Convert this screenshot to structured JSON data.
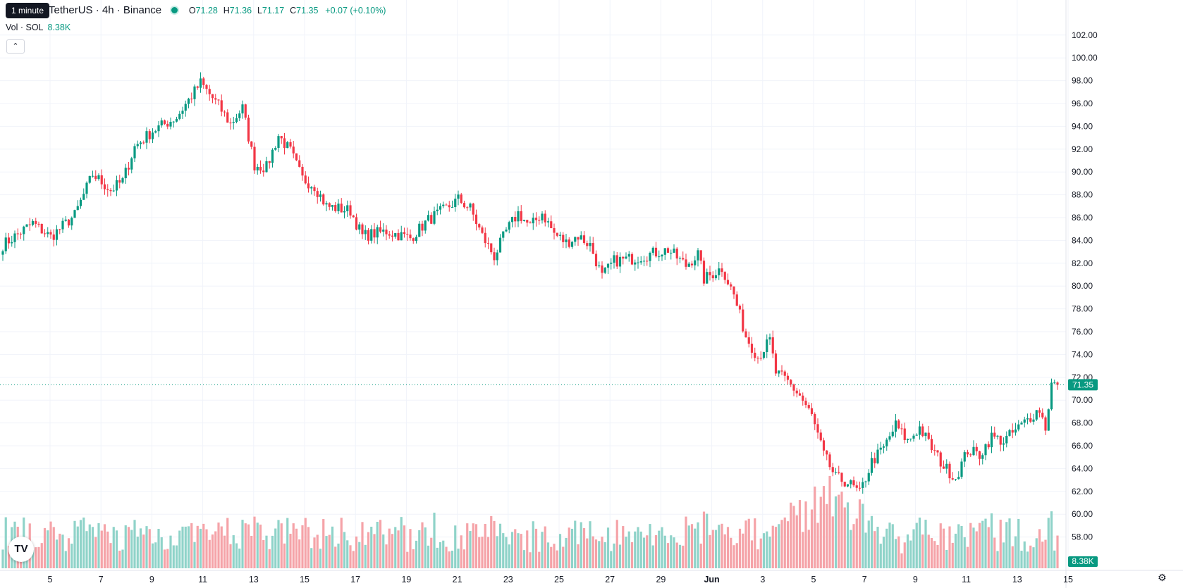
{
  "tooltip": "1 minute",
  "legend": {
    "symbol": "TetherUS · 4h · Binance",
    "open_label": "O",
    "open": "71.28",
    "high_label": "H",
    "high": "71.36",
    "low_label": "L",
    "low": "71.17",
    "close_label": "C",
    "close": "71.35",
    "change": "+0.07 (+0.10%)"
  },
  "volume_legend": {
    "label": "Vol · SOL",
    "value": "8.38K"
  },
  "colors": {
    "up": "#089981",
    "down": "#f23645",
    "vol_up": "#8fd3c9",
    "vol_down": "#f5a3a8",
    "grid": "#f0f3fa"
  },
  "chart_data": {
    "type": "candlestick",
    "price_axis": {
      "ticks": [
        58,
        60,
        62,
        64,
        66,
        68,
        70,
        72,
        74,
        76,
        78,
        80,
        82,
        84,
        86,
        88,
        90,
        92,
        94,
        96,
        98,
        100,
        102
      ],
      "range": [
        56.8,
        103
      ]
    },
    "time_axis": {
      "labels": [
        "5",
        "7",
        "9",
        "11",
        "13",
        "15",
        "17",
        "19",
        "21",
        "23",
        "25",
        "27",
        "29",
        "Jun",
        "3",
        "5",
        "7",
        "9",
        "11",
        "13",
        "15"
      ]
    },
    "last_price": {
      "value": 71.35,
      "label": "71.35"
    },
    "volume_badge": "8.38K",
    "anchors": [
      [
        0,
        83.6
      ],
      [
        10,
        85.5
      ],
      [
        16,
        84.3
      ],
      [
        24,
        86.2
      ],
      [
        30,
        89.8
      ],
      [
        36,
        88.4
      ],
      [
        40,
        89.2
      ],
      [
        44,
        92.2
      ],
      [
        50,
        93.6
      ],
      [
        58,
        94.8
      ],
      [
        66,
        97.8
      ],
      [
        72,
        95.8
      ],
      [
        76,
        94.2
      ],
      [
        80,
        95.6
      ],
      [
        84,
        90.6
      ],
      [
        88,
        90.4
      ],
      [
        92,
        93.2
      ],
      [
        96,
        91.8
      ],
      [
        100,
        89.4
      ],
      [
        104,
        88.8
      ],
      [
        108,
        87
      ],
      [
        112,
        86.8
      ],
      [
        116,
        86.6
      ],
      [
        120,
        84.4
      ],
      [
        128,
        84.8
      ],
      [
        136,
        84.2
      ],
      [
        142,
        85.8
      ],
      [
        148,
        86.8
      ],
      [
        152,
        87.6
      ],
      [
        156,
        86.8
      ],
      [
        160,
        84.4
      ],
      [
        164,
        82.6
      ],
      [
        168,
        84.8
      ],
      [
        172,
        86.4
      ],
      [
        176,
        85.2
      ],
      [
        180,
        86.4
      ],
      [
        184,
        84.6
      ],
      [
        188,
        83.8
      ],
      [
        192,
        84.4
      ],
      [
        196,
        83.6
      ],
      [
        200,
        80.8
      ],
      [
        204,
        82.2
      ],
      [
        210,
        82.4
      ],
      [
        216,
        82.8
      ],
      [
        222,
        83.2
      ],
      [
        228,
        81.8
      ],
      [
        232,
        82.8
      ],
      [
        234,
        80.6
      ],
      [
        240,
        81.6
      ],
      [
        244,
        79.2
      ],
      [
        248,
        75.6
      ],
      [
        252,
        73.8
      ],
      [
        256,
        75.2
      ],
      [
        258,
        72.4
      ],
      [
        262,
        71.6
      ],
      [
        266,
        70.4
      ],
      [
        270,
        68.6
      ],
      [
        274,
        65.2
      ],
      [
        278,
        63.2
      ],
      [
        282,
        62.8
      ],
      [
        286,
        61.8
      ],
      [
        290,
        64.6
      ],
      [
        294,
        65.8
      ],
      [
        298,
        67.8
      ],
      [
        302,
        66.4
      ],
      [
        306,
        67.6
      ],
      [
        310,
        65.8
      ],
      [
        314,
        64.2
      ],
      [
        318,
        63.2
      ],
      [
        322,
        65.6
      ],
      [
        326,
        65.2
      ],
      [
        330,
        66.8
      ],
      [
        334,
        66.4
      ],
      [
        340,
        67.8
      ],
      [
        344,
        68.8
      ],
      [
        346,
        69.2
      ],
      [
        348,
        67.6
      ],
      [
        350,
        71.4
      ],
      [
        352,
        71.4
      ]
    ],
    "volume_scale": 68000
  }
}
